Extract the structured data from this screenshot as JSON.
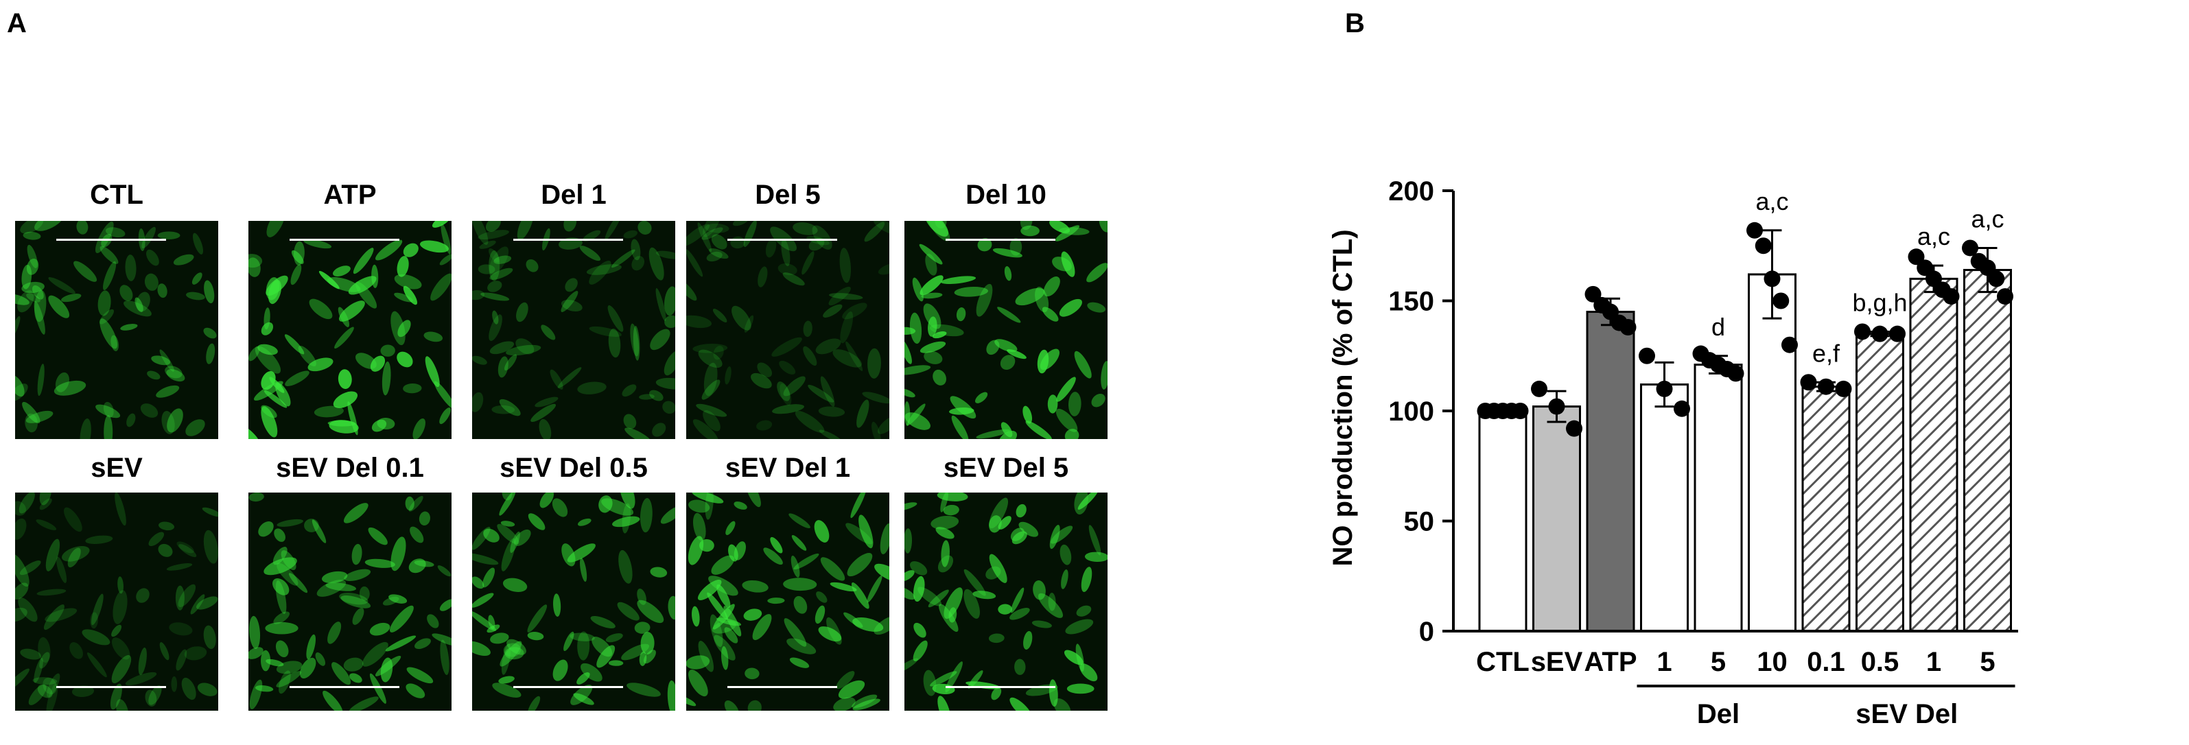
{
  "panels": {
    "a": "A",
    "b": "B"
  },
  "micrographs": {
    "row1": [
      {
        "label": "CTL",
        "brightness": 0.55
      },
      {
        "label": "ATP",
        "brightness": 0.95
      },
      {
        "label": "Del 1",
        "brightness": 0.4
      },
      {
        "label": "Del 5",
        "brightness": 0.3
      },
      {
        "label": "Del 10",
        "brightness": 0.9
      }
    ],
    "row2": [
      {
        "label": "sEV",
        "brightness": 0.35
      },
      {
        "label": "sEV Del 0.1",
        "brightness": 0.7
      },
      {
        "label": "sEV Del 0.5",
        "brightness": 0.7
      },
      {
        "label": "sEV Del 1",
        "brightness": 0.8
      },
      {
        "label": "sEV Del 5",
        "brightness": 0.85
      }
    ],
    "fluorescence_color": "#39e639"
  },
  "chart_data": {
    "type": "bar",
    "ylabel": "NO production (% of CTL)",
    "ylim": [
      0,
      200
    ],
    "yticks": [
      0,
      50,
      100,
      150,
      200
    ],
    "categories": [
      "CTL",
      "sEV",
      "ATP",
      "1",
      "5",
      "10",
      "0.1",
      "0.5",
      "1",
      "5"
    ],
    "groups": [
      {
        "label": "Del",
        "from": 3,
        "to": 5
      },
      {
        "label": "sEV Del",
        "from": 6,
        "to": 9
      }
    ],
    "values": [
      100,
      102,
      145,
      112,
      121,
      162,
      111,
      135,
      160,
      164
    ],
    "errors": [
      1,
      7,
      6,
      10,
      4,
      20,
      2,
      1,
      6,
      10
    ],
    "points": [
      [
        100,
        100,
        100,
        100,
        100
      ],
      [
        110,
        102,
        92
      ],
      [
        153,
        148,
        145,
        140,
        138
      ],
      [
        125,
        110,
        101
      ],
      [
        126,
        123,
        121,
        119,
        117
      ],
      [
        182,
        175,
        160,
        150,
        130
      ],
      [
        113,
        111,
        110
      ],
      [
        136,
        135,
        135
      ],
      [
        170,
        165,
        160,
        155,
        152
      ],
      [
        174,
        168,
        165,
        160,
        152
      ]
    ],
    "fills": [
      "#ffffff",
      "#c0c0c0",
      "#6d6d6d",
      "#ffffff",
      "#ffffff",
      "#ffffff",
      "hatch",
      "hatch",
      "hatch",
      "hatch"
    ],
    "annotations": [
      "",
      "",
      "",
      "",
      "d",
      "a,c",
      "e,f",
      "b,g,h",
      "a,c",
      "a,c"
    ]
  }
}
